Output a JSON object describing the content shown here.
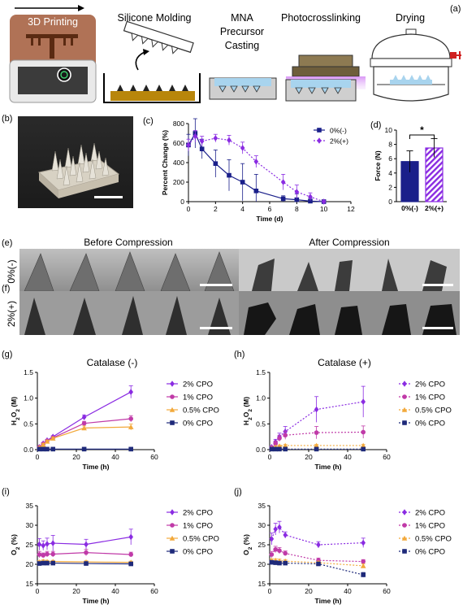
{
  "panel_labels": {
    "a": "(a)",
    "b": "(b)",
    "c": "(c)",
    "d": "(d)",
    "e": "(e)",
    "f": "(f)",
    "g": "(g)",
    "h": "(h)",
    "i": "(i)",
    "j": "(j)"
  },
  "process": {
    "printer_label": "3D Printing",
    "steps": [
      "Silicone Molding",
      "MNA\nPrecursor\nCasting",
      "Photocrosslinking",
      "Drying"
    ]
  },
  "photos": {
    "before": "Before Compression",
    "after": "After Compression",
    "row1": "0%(-)",
    "row2": "2%(+)"
  },
  "colors": {
    "navy": "#1a1f8a",
    "purple": "#8a2be2",
    "magenta": "#c03aa8",
    "orange": "#f2a93b",
    "blue_dark": "#1f2a7a"
  },
  "chart_data": [
    {
      "id": "c",
      "type": "line",
      "xlabel": "Time (d)",
      "ylabel": "Percent Change (%)",
      "xlim": [
        0,
        12
      ],
      "ylim": [
        0,
        800
      ],
      "xticks": [
        0,
        2,
        4,
        6,
        8,
        10,
        12
      ],
      "yticks": [
        0,
        200,
        400,
        600,
        800
      ],
      "legend": "top-right",
      "series": [
        {
          "name": "0%(-)",
          "style": "solid",
          "marker": "square",
          "x": [
            0,
            0.5,
            1,
            2,
            3,
            4,
            5,
            7,
            8,
            9,
            10
          ],
          "y": [
            580,
            700,
            540,
            390,
            270,
            200,
            110,
            30,
            20,
            5,
            0
          ],
          "err": [
            110,
            150,
            100,
            140,
            160,
            190,
            170,
            30,
            60,
            30,
            10
          ]
        },
        {
          "name": "2%(+)",
          "style": "dotted",
          "marker": "diamond",
          "x": [
            0,
            0.5,
            1,
            2,
            3,
            4,
            5,
            7,
            8,
            9,
            10
          ],
          "y": [
            580,
            670,
            620,
            650,
            630,
            550,
            410,
            200,
            100,
            50,
            0
          ],
          "err": [
            60,
            60,
            50,
            40,
            50,
            60,
            60,
            80,
            70,
            40,
            10
          ]
        }
      ]
    },
    {
      "id": "d",
      "type": "bar",
      "ylabel": "Force (N)",
      "ylim": [
        0,
        10
      ],
      "yticks": [
        0,
        2,
        4,
        6,
        8,
        10
      ],
      "categories": [
        "0%(-)",
        "2%(+)"
      ],
      "values": [
        5.6,
        7.5
      ],
      "err": [
        1.5,
        1.3
      ],
      "annotation": "*"
    },
    {
      "id": "g",
      "type": "line",
      "title": "Catalase (-)",
      "xlabel": "Time (h)",
      "ylabel": "H2O2 (M)",
      "xlim": [
        0,
        60
      ],
      "ylim": [
        0,
        1.5
      ],
      "xticks": [
        0,
        20,
        40,
        60
      ],
      "yticks": [
        0.0,
        0.5,
        1.0,
        1.5
      ],
      "legend": "top-right",
      "series": [
        {
          "name": "2% CPO",
          "style": "solid",
          "marker": "diamond",
          "x": [
            1,
            3,
            5,
            8,
            24,
            48
          ],
          "y": [
            0.05,
            0.12,
            0.18,
            0.25,
            0.63,
            1.12
          ],
          "err": [
            0.01,
            0.02,
            0.02,
            0.02,
            0.04,
            0.12
          ]
        },
        {
          "name": "1% CPO",
          "style": "solid",
          "marker": "circle",
          "x": [
            1,
            3,
            5,
            8,
            24,
            48
          ],
          "y": [
            0.05,
            0.11,
            0.17,
            0.23,
            0.51,
            0.6
          ],
          "err": [
            0.01,
            0.02,
            0.02,
            0.02,
            0.04,
            0.06
          ]
        },
        {
          "name": "0.5% CPO",
          "style": "solid",
          "marker": "triangle",
          "x": [
            1,
            3,
            5,
            8,
            24,
            48
          ],
          "y": [
            0.04,
            0.1,
            0.16,
            0.22,
            0.42,
            0.44
          ],
          "err": [
            0.01,
            0.02,
            0.02,
            0.02,
            0.04,
            0.06
          ]
        },
        {
          "name": "0% CPO",
          "style": "solid",
          "marker": "square",
          "x": [
            1,
            3,
            5,
            8,
            24,
            48
          ],
          "y": [
            0.01,
            0.01,
            0.01,
            0.01,
            0.01,
            0.01
          ],
          "err": [
            0,
            0,
            0,
            0,
            0,
            0
          ]
        }
      ]
    },
    {
      "id": "h",
      "type": "line",
      "title": "Catalase (+)",
      "xlabel": "Time (h)",
      "ylabel": "H2O2 (M)",
      "xlim": [
        0,
        60
      ],
      "ylim": [
        0,
        1.5
      ],
      "xticks": [
        0,
        20,
        40,
        60
      ],
      "yticks": [
        0.0,
        0.5,
        1.0,
        1.5
      ],
      "legend": "top-right",
      "series": [
        {
          "name": "2% CPO",
          "style": "dotted",
          "marker": "diamond",
          "x": [
            1,
            3,
            5,
            8,
            24,
            48
          ],
          "y": [
            0.05,
            0.15,
            0.25,
            0.35,
            0.78,
            0.93
          ],
          "err": [
            0.02,
            0.05,
            0.07,
            0.1,
            0.25,
            0.3
          ]
        },
        {
          "name": "1% CPO",
          "style": "dotted",
          "marker": "circle",
          "x": [
            1,
            3,
            5,
            8,
            24,
            48
          ],
          "y": [
            0.04,
            0.12,
            0.22,
            0.28,
            0.33,
            0.34
          ],
          "err": [
            0.02,
            0.05,
            0.06,
            0.08,
            0.12,
            0.12
          ]
        },
        {
          "name": "0.5% CPO",
          "style": "dotted",
          "marker": "triangle",
          "x": [
            1,
            3,
            5,
            8,
            24,
            48
          ],
          "y": [
            0.02,
            0.05,
            0.07,
            0.08,
            0.08,
            0.08
          ],
          "err": [
            0.01,
            0.02,
            0.02,
            0.02,
            0.02,
            0.02
          ]
        },
        {
          "name": "0% CPO",
          "style": "dotted",
          "marker": "square",
          "x": [
            1,
            3,
            5,
            8,
            24,
            48
          ],
          "y": [
            0.01,
            0.01,
            0.01,
            0.01,
            0.01,
            0.01
          ],
          "err": [
            0,
            0,
            0,
            0,
            0,
            0
          ]
        }
      ]
    },
    {
      "id": "i",
      "type": "line",
      "xlabel": "Time (h)",
      "ylabel": "O2 (%)",
      "xlim": [
        0,
        60
      ],
      "ylim": [
        15,
        35
      ],
      "xticks": [
        0,
        20,
        40,
        60
      ],
      "yticks": [
        15,
        20,
        25,
        30,
        35
      ],
      "legend": "top-right",
      "series": [
        {
          "name": "2% CPO",
          "style": "solid",
          "marker": "diamond",
          "x": [
            1,
            3,
            5,
            8,
            25,
            48
          ],
          "y": [
            25.1,
            24.8,
            25.2,
            25.4,
            25.1,
            27.0
          ],
          "err": [
            1.5,
            1.2,
            1.5,
            2.0,
            1.3,
            2.0
          ]
        },
        {
          "name": "1% CPO",
          "style": "solid",
          "marker": "circle",
          "x": [
            1,
            3,
            5,
            8,
            25,
            48
          ],
          "y": [
            22.5,
            22.3,
            22.6,
            22.6,
            23.0,
            22.5
          ],
          "err": [
            0.8,
            0.6,
            0.7,
            0.7,
            0.8,
            0.6
          ]
        },
        {
          "name": "0.5% CPO",
          "style": "solid",
          "marker": "triangle",
          "x": [
            1,
            3,
            5,
            8,
            25,
            48
          ],
          "y": [
            20.6,
            20.8,
            20.7,
            20.7,
            20.6,
            20.5
          ],
          "err": [
            0.3,
            0.3,
            0.3,
            0.3,
            0.3,
            0.3
          ]
        },
        {
          "name": "0% CPO",
          "style": "solid",
          "marker": "square",
          "x": [
            1,
            3,
            5,
            8,
            25,
            48
          ],
          "y": [
            20.2,
            20.3,
            20.3,
            20.3,
            20.2,
            20.1
          ],
          "err": [
            0.2,
            0.2,
            0.2,
            0.2,
            0.2,
            0.2
          ]
        }
      ]
    },
    {
      "id": "j",
      "type": "line",
      "xlabel": "Time (h)",
      "ylabel": "O2 (%)",
      "xlim": [
        0,
        60
      ],
      "ylim": [
        15,
        35
      ],
      "xticks": [
        0,
        20,
        40,
        60
      ],
      "yticks": [
        15,
        20,
        25,
        30,
        35
      ],
      "legend": "top-right",
      "series": [
        {
          "name": "2% CPO",
          "style": "dotted",
          "marker": "diamond",
          "x": [
            1,
            3,
            5,
            8,
            25,
            48
          ],
          "y": [
            26.5,
            29.0,
            29.5,
            27.5,
            25.0,
            25.5
          ],
          "err": [
            1.5,
            1.5,
            1.5,
            0.8,
            0.8,
            1.2
          ]
        },
        {
          "name": "1% CPO",
          "style": "dotted",
          "marker": "circle",
          "x": [
            1,
            3,
            5,
            8,
            25,
            48
          ],
          "y": [
            22.5,
            23.8,
            23.5,
            22.8,
            21.0,
            20.7
          ],
          "err": [
            0.8,
            0.8,
            0.8,
            0.6,
            0.6,
            0.5
          ]
        },
        {
          "name": "0.5% CPO",
          "style": "dotted",
          "marker": "triangle",
          "x": [
            1,
            3,
            5,
            8,
            25,
            48
          ],
          "y": [
            21.0,
            21.0,
            20.9,
            20.8,
            20.4,
            19.6
          ],
          "err": [
            0.4,
            0.4,
            0.4,
            0.4,
            0.4,
            0.5
          ]
        },
        {
          "name": "0% CPO",
          "style": "dotted",
          "marker": "square",
          "x": [
            1,
            3,
            5,
            8,
            25,
            48
          ],
          "y": [
            20.5,
            20.4,
            20.3,
            20.3,
            20.1,
            17.3
          ],
          "err": [
            0.3,
            0.3,
            0.3,
            0.3,
            0.3,
            0.6
          ]
        }
      ]
    }
  ]
}
